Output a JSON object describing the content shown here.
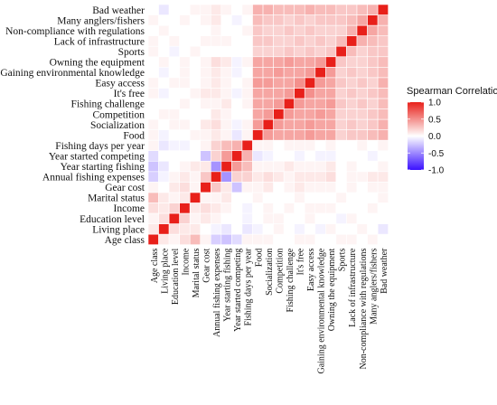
{
  "chart_data": {
    "type": "heatmap",
    "title": "",
    "xlabel": "",
    "ylabel": "",
    "variables": [
      "Age class",
      "Living place",
      "Education level",
      "Income",
      "Marital status",
      "Gear cost",
      "Annual fishing expenses",
      "Year starting fishing",
      "Year started competing",
      "Fishing days per year",
      "Food",
      "Socialization",
      "Competition",
      "Fishing challenge",
      "It's free",
      "Easy access",
      "Gaining environmental knowledge",
      "Owning the equipment",
      "Sports",
      "Lack of infrastructure",
      "Non-compliance with regulations",
      "Many anglers/fishers",
      "Bad weather"
    ],
    "matrix": [
      [
        1.0,
        0.1,
        0.05,
        0.15,
        0.3,
        0.05,
        -0.2,
        -0.25,
        -0.15,
        0.05,
        0.05,
        0.05,
        0.0,
        0.0,
        0.05,
        0.05,
        0.0,
        0.0,
        0.05,
        0.05,
        0.0,
        0.05,
        0.0
      ],
      [
        0.1,
        1.0,
        0.15,
        0.1,
        0.1,
        0.0,
        -0.05,
        -0.1,
        0.0,
        -0.1,
        -0.05,
        0.0,
        0.05,
        0.0,
        -0.05,
        0.0,
        -0.05,
        0.05,
        0.0,
        0.0,
        0.05,
        0.0,
        -0.1
      ],
      [
        0.05,
        0.15,
        1.0,
        0.2,
        0.05,
        0.1,
        0.05,
        0.0,
        0.0,
        -0.05,
        0.0,
        0.05,
        0.05,
        0.0,
        0.0,
        0.05,
        0.0,
        0.0,
        -0.05,
        0.05,
        0.0,
        0.0,
        0.0
      ],
      [
        0.15,
        0.1,
        0.2,
        1.0,
        0.1,
        0.15,
        0.1,
        0.05,
        0.0,
        -0.05,
        0.0,
        0.05,
        0.0,
        0.05,
        0.0,
        0.05,
        0.05,
        0.05,
        0.0,
        0.0,
        0.0,
        0.05,
        0.0
      ],
      [
        0.3,
        0.1,
        0.05,
        0.1,
        1.0,
        0.05,
        0.05,
        0.1,
        0.0,
        0.0,
        0.05,
        0.0,
        0.0,
        0.0,
        0.05,
        0.0,
        0.0,
        0.0,
        0.05,
        0.0,
        0.0,
        0.0,
        0.05
      ],
      [
        0.05,
        0.0,
        0.1,
        0.15,
        0.05,
        1.0,
        0.25,
        0.1,
        -0.25,
        0.05,
        0.05,
        0.1,
        0.0,
        0.05,
        0.1,
        0.05,
        0.05,
        0.05,
        0.0,
        0.05,
        0.0,
        0.05,
        0.05
      ],
      [
        -0.2,
        -0.05,
        0.05,
        0.1,
        0.05,
        0.25,
        1.0,
        -0.45,
        0.2,
        0.2,
        0.1,
        0.15,
        0.1,
        0.05,
        0.1,
        0.1,
        0.1,
        0.15,
        0.0,
        0.05,
        0.05,
        0.1,
        0.1
      ],
      [
        -0.25,
        -0.1,
        0.0,
        0.05,
        0.1,
        0.1,
        -0.45,
        1.0,
        0.45,
        0.3,
        0.05,
        0.05,
        0.05,
        0.1,
        0.05,
        0.05,
        0.05,
        0.1,
        0.0,
        0.05,
        0.0,
        0.0,
        0.05
      ],
      [
        -0.15,
        0.0,
        0.0,
        0.0,
        0.0,
        -0.25,
        0.2,
        0.45,
        1.0,
        0.35,
        -0.1,
        -0.05,
        0.0,
        0.0,
        -0.05,
        0.0,
        -0.05,
        -0.05,
        0.0,
        0.0,
        0.0,
        -0.05,
        0.0
      ],
      [
        0.05,
        -0.1,
        -0.05,
        -0.05,
        0.0,
        0.05,
        0.2,
        0.3,
        0.35,
        1.0,
        0.05,
        0.05,
        0.0,
        0.05,
        0.05,
        0.05,
        0.0,
        0.05,
        0.0,
        0.0,
        0.05,
        0.0,
        0.05
      ],
      [
        0.05,
        -0.05,
        0.0,
        0.0,
        0.05,
        0.05,
        0.1,
        0.05,
        -0.1,
        0.05,
        1.0,
        0.45,
        0.4,
        0.4,
        0.4,
        0.45,
        0.4,
        0.4,
        0.2,
        0.25,
        0.25,
        0.3,
        0.35
      ],
      [
        0.05,
        0.0,
        0.05,
        0.05,
        0.0,
        0.1,
        0.15,
        0.05,
        -0.05,
        0.05,
        0.45,
        1.0,
        0.45,
        0.4,
        0.4,
        0.45,
        0.4,
        0.4,
        0.2,
        0.25,
        0.2,
        0.25,
        0.35
      ],
      [
        0.0,
        0.05,
        0.05,
        0.0,
        0.0,
        0.0,
        0.1,
        0.05,
        0.0,
        0.0,
        0.4,
        0.45,
        1.0,
        0.45,
        0.4,
        0.4,
        0.45,
        0.4,
        0.2,
        0.2,
        0.2,
        0.25,
        0.3
      ],
      [
        0.0,
        0.0,
        0.0,
        0.05,
        0.0,
        0.05,
        0.05,
        0.1,
        0.0,
        0.05,
        0.4,
        0.4,
        0.45,
        1.0,
        0.45,
        0.4,
        0.4,
        0.45,
        0.25,
        0.2,
        0.25,
        0.2,
        0.3
      ],
      [
        0.05,
        -0.05,
        0.0,
        0.0,
        0.05,
        0.1,
        0.1,
        0.05,
        -0.05,
        0.05,
        0.4,
        0.4,
        0.4,
        0.45,
        1.0,
        0.5,
        0.4,
        0.4,
        0.2,
        0.25,
        0.2,
        0.25,
        0.3
      ],
      [
        0.05,
        0.0,
        0.05,
        0.05,
        0.0,
        0.05,
        0.1,
        0.05,
        0.0,
        0.05,
        0.45,
        0.45,
        0.4,
        0.4,
        0.5,
        1.0,
        0.45,
        0.4,
        0.25,
        0.2,
        0.25,
        0.2,
        0.35
      ],
      [
        0.0,
        -0.05,
        0.0,
        0.05,
        0.0,
        0.05,
        0.1,
        0.05,
        -0.05,
        0.0,
        0.4,
        0.4,
        0.45,
        0.4,
        0.4,
        0.45,
        1.0,
        0.45,
        0.2,
        0.25,
        0.2,
        0.25,
        0.3
      ],
      [
        0.0,
        0.05,
        0.0,
        0.05,
        0.0,
        0.05,
        0.15,
        0.1,
        -0.05,
        0.05,
        0.4,
        0.4,
        0.4,
        0.45,
        0.4,
        0.4,
        0.45,
        1.0,
        0.25,
        0.2,
        0.2,
        0.25,
        0.3
      ],
      [
        0.05,
        0.0,
        -0.05,
        0.0,
        0.05,
        0.0,
        0.0,
        0.0,
        0.0,
        0.0,
        0.2,
        0.2,
        0.2,
        0.25,
        0.2,
        0.25,
        0.2,
        0.25,
        1.0,
        0.3,
        0.2,
        0.25,
        0.25
      ],
      [
        0.05,
        0.0,
        0.05,
        0.0,
        0.0,
        0.05,
        0.05,
        0.05,
        0.0,
        0.0,
        0.25,
        0.25,
        0.2,
        0.2,
        0.25,
        0.2,
        0.25,
        0.2,
        0.3,
        1.0,
        0.35,
        0.3,
        0.25
      ],
      [
        0.0,
        0.05,
        0.0,
        0.0,
        0.0,
        0.0,
        0.05,
        0.0,
        0.0,
        0.05,
        0.25,
        0.2,
        0.2,
        0.25,
        0.2,
        0.25,
        0.2,
        0.2,
        0.2,
        0.35,
        1.0,
        0.4,
        0.3
      ],
      [
        0.05,
        0.0,
        0.0,
        0.05,
        0.0,
        0.05,
        0.1,
        0.0,
        -0.05,
        0.0,
        0.3,
        0.25,
        0.25,
        0.2,
        0.25,
        0.2,
        0.25,
        0.25,
        0.25,
        0.3,
        0.4,
        1.0,
        0.35
      ],
      [
        0.0,
        -0.1,
        0.0,
        0.0,
        0.05,
        0.05,
        0.1,
        0.05,
        0.0,
        0.05,
        0.35,
        0.35,
        0.3,
        0.3,
        0.3,
        0.35,
        0.3,
        0.3,
        0.25,
        0.25,
        0.3,
        0.35,
        1.0
      ]
    ],
    "legend": {
      "title": "Spearman Correlation",
      "range": [
        -1.0,
        1.0
      ],
      "ticks": [
        "1.0",
        "0.5",
        "0.0",
        "-0.5",
        "-1.0"
      ],
      "placement": "right"
    },
    "colors": {
      "negative": "#3a10ff",
      "zero": "#ffffff",
      "positive": "#e8201a",
      "grid": "#ffffff"
    },
    "grid": false
  }
}
